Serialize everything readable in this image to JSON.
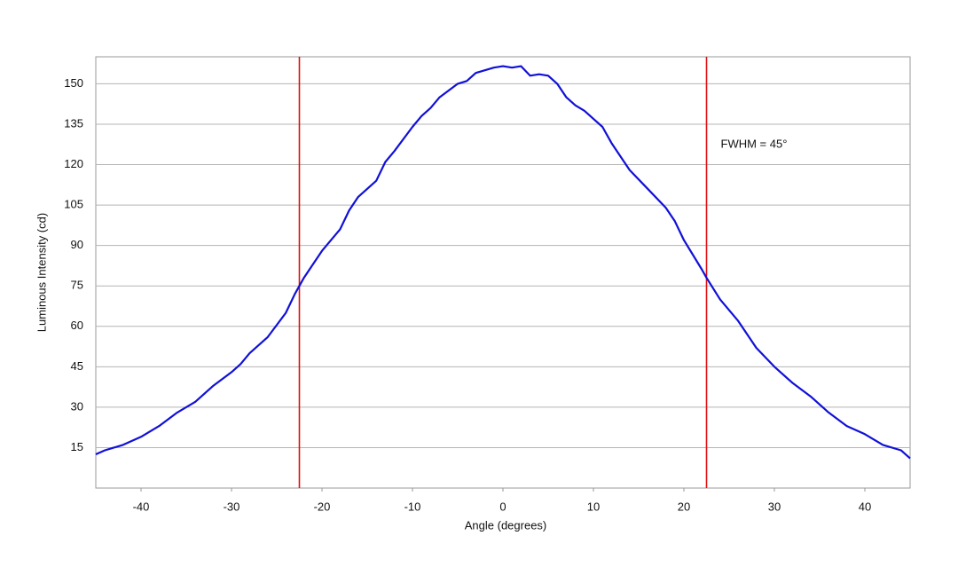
{
  "chart_data": {
    "type": "line",
    "xlabel": "Angle (degrees)",
    "ylabel": "Luminous Intensity (cd)",
    "annotation": "FWHM = 45°",
    "x": [
      -45,
      -44,
      -42,
      -40,
      -38,
      -36,
      -34,
      -32,
      -30,
      -29,
      -28,
      -26,
      -24,
      -23,
      -22,
      -21,
      -20,
      -18,
      -17,
      -16,
      -14,
      -13,
      -12,
      -10,
      -9,
      -8,
      -7,
      -5,
      -4,
      -3,
      -1,
      0,
      1,
      2,
      3,
      4,
      5,
      6,
      7,
      8,
      9,
      10,
      11,
      12,
      14,
      16,
      18,
      19,
      20,
      22,
      22.5,
      24,
      26,
      28,
      30,
      32,
      34,
      36,
      38,
      40,
      42,
      44,
      45
    ],
    "series": [
      {
        "name": "Luminous Intensity",
        "color": "#1010d8",
        "values": [
          12.5,
          14,
          16,
          19,
          23,
          28,
          32,
          38,
          43,
          46,
          50,
          56,
          65,
          72,
          78,
          83,
          88,
          96,
          103,
          108,
          114,
          121,
          125,
          134,
          138,
          141,
          145,
          150,
          151,
          154,
          156,
          156.5,
          156,
          156.5,
          153,
          153.5,
          153,
          150,
          145,
          142,
          140,
          137,
          134,
          128,
          118,
          111,
          104,
          99,
          92,
          81,
          78,
          70,
          62,
          52,
          45,
          39,
          34,
          28,
          23,
          20,
          16,
          14,
          11
        ]
      }
    ],
    "vlines": [
      -22.5,
      22.5
    ],
    "vline_color": "#e01010",
    "xlim": [
      -45,
      45
    ],
    "ylim": [
      0,
      160
    ],
    "xticks": [
      -40,
      -30,
      -20,
      -10,
      0,
      10,
      20,
      30,
      40
    ],
    "yticks": [
      15,
      30,
      45,
      60,
      75,
      90,
      105,
      120,
      135,
      150
    ],
    "grid": true
  }
}
